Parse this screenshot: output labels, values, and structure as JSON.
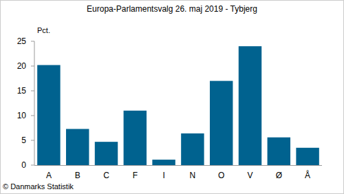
{
  "chart_data": {
    "type": "bar",
    "title": "Europa-Parlamentsvalg 26. maj 2019 - Tybjerg",
    "ylabel": "Pct.",
    "annotations": [
      "© Danmarks Statistik"
    ],
    "categories": [
      "A",
      "B",
      "C",
      "F",
      "I",
      "N",
      "O",
      "V",
      "Ø",
      "Å"
    ],
    "values": [
      20.2,
      7.3,
      4.7,
      11.0,
      1.1,
      6.4,
      17.0,
      24.0,
      5.6,
      3.5
    ],
    "color": "#00628f",
    "ylim": [
      0,
      25
    ],
    "yticks": [
      0,
      5,
      10,
      15,
      20,
      25
    ],
    "grid": false
  }
}
